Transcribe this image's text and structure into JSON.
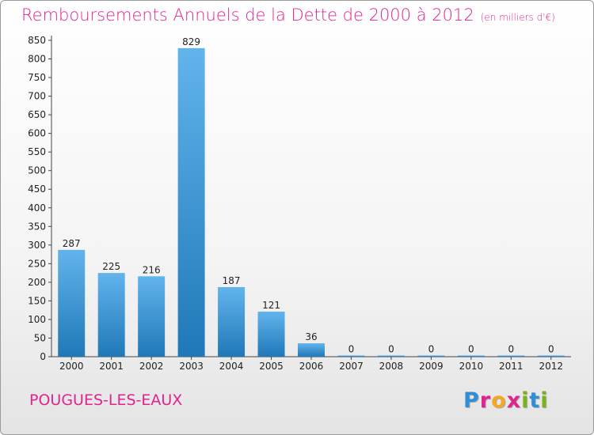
{
  "chart_data": {
    "type": "bar",
    "title": "Remboursements Annuels de la Dette de 2000 à 2012",
    "subtitle": "(en milliers d'€)",
    "categories": [
      "2000",
      "2001",
      "2002",
      "2003",
      "2004",
      "2005",
      "2006",
      "2007",
      "2008",
      "2009",
      "2010",
      "2011",
      "2012"
    ],
    "values": [
      287,
      225,
      216,
      829,
      187,
      121,
      36,
      0,
      0,
      0,
      0,
      0,
      0
    ],
    "ylim": [
      0,
      850
    ],
    "yticks": [
      0,
      50,
      100,
      150,
      200,
      250,
      300,
      350,
      400,
      450,
      500,
      550,
      600,
      650,
      700,
      750,
      800,
      850
    ],
    "grid": false,
    "colors": {
      "bar_top": "#62b4ec",
      "bar_bottom": "#1f78b8",
      "text_accent": "#e0248e"
    }
  },
  "footer": {
    "city": "POUGUES-LES-EAUX",
    "logo_letters": [
      "P",
      "r",
      "o",
      "x",
      "i",
      "t",
      "i"
    ],
    "logo_colors": [
      "#2f8fd6",
      "#e0248e",
      "#f5a623",
      "#e0248e",
      "#7ab317",
      "#2f8fd6",
      "#7ab317"
    ]
  }
}
